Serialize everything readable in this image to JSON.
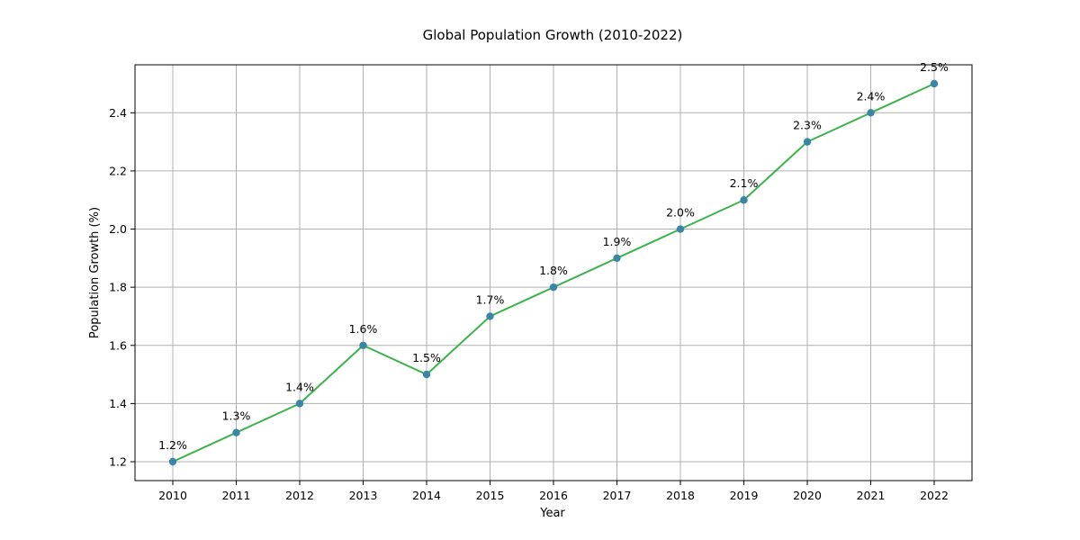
{
  "chart_data": {
    "type": "line",
    "title": "Global Population Growth (2010-2022)",
    "xlabel": "Year",
    "ylabel": "Population Growth (%)",
    "x": [
      "2010",
      "2011",
      "2012",
      "2013",
      "2014",
      "2015",
      "2016",
      "2017",
      "2018",
      "2019",
      "2020",
      "2021",
      "2022"
    ],
    "series": [
      {
        "values": [
          1.2,
          1.3,
          1.4,
          1.6,
          1.5,
          1.7,
          1.8,
          1.9,
          2.0,
          2.1,
          2.3,
          2.4,
          2.5
        ],
        "labels": [
          "1.2%",
          "1.3%",
          "1.4%",
          "1.6%",
          "1.5%",
          "1.7%",
          "1.8%",
          "1.9%",
          "2.0%",
          "2.1%",
          "2.3%",
          "2.4%",
          "2.5%"
        ],
        "line_color": "#3cb44b",
        "marker_color": "#3a86a8"
      }
    ],
    "yticks": [
      "1.2",
      "1.4",
      "1.6",
      "1.8",
      "2.0",
      "2.2",
      "2.4"
    ],
    "ylim": [
      1.135,
      2.565
    ],
    "grid": true,
    "legend": "none"
  }
}
